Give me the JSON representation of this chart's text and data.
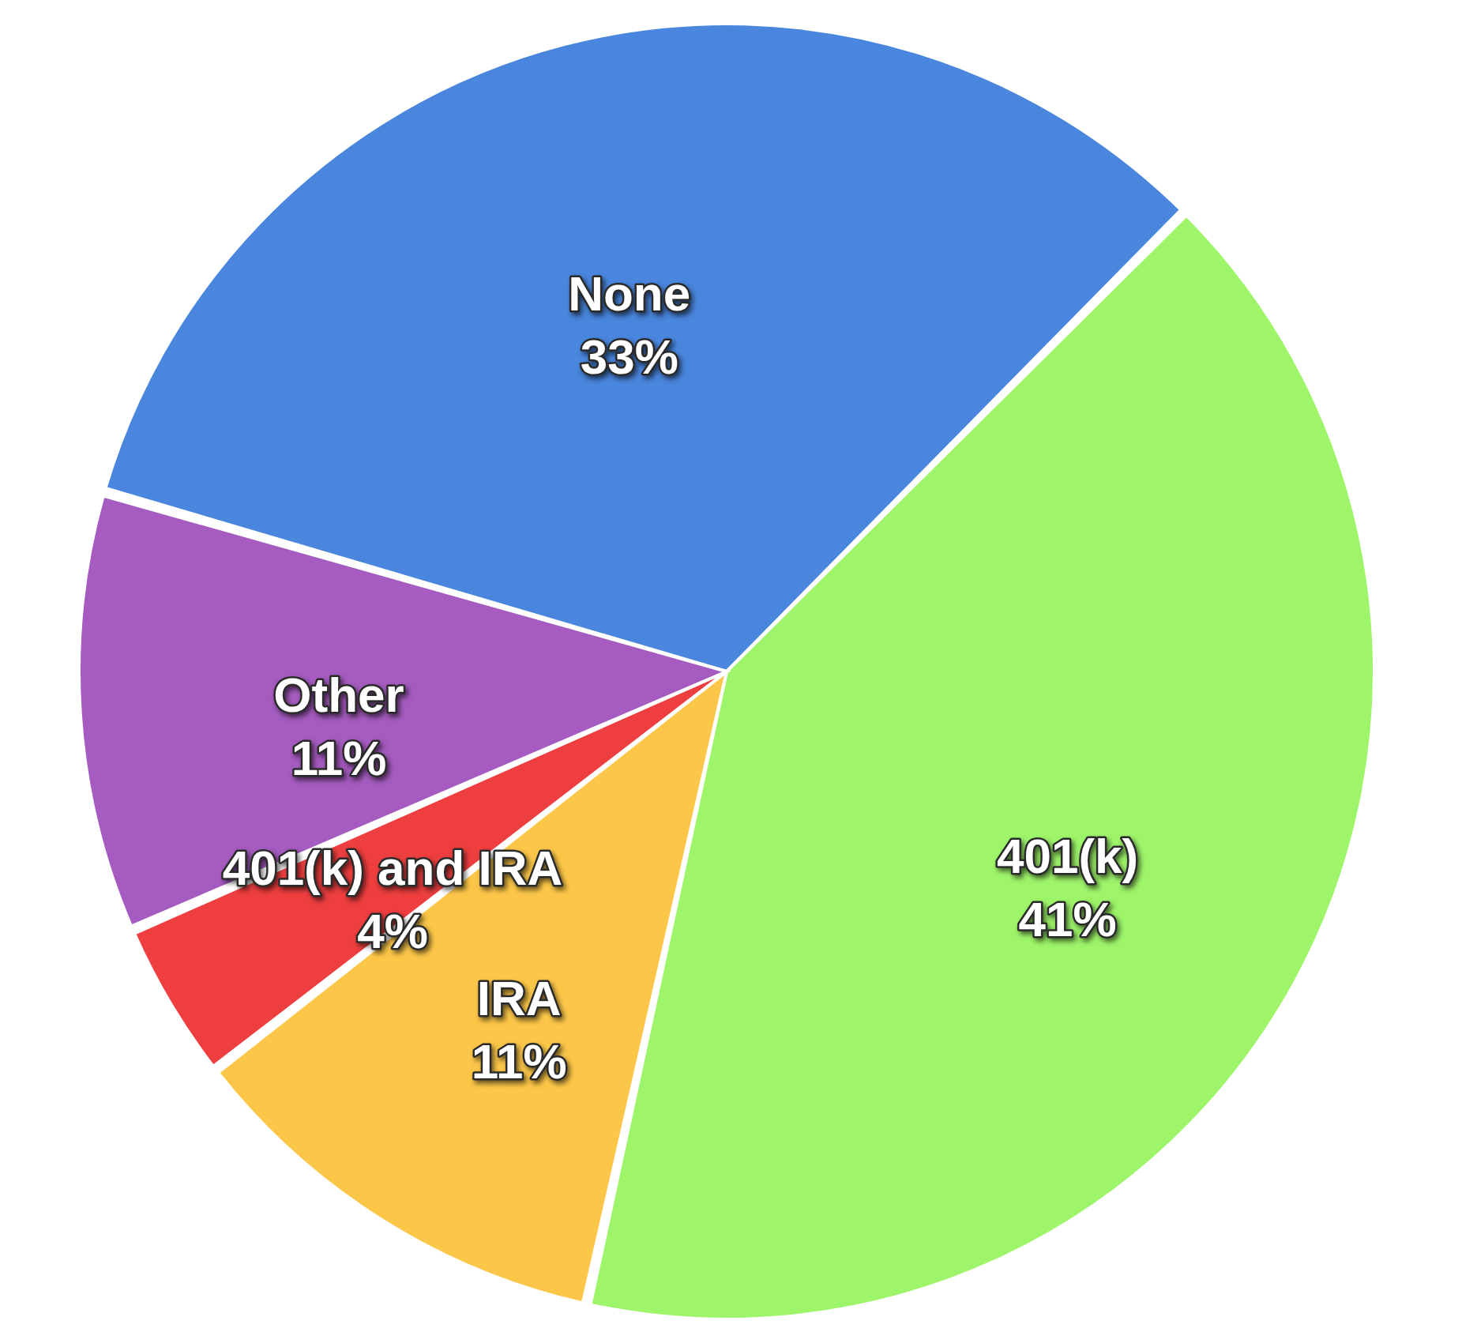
{
  "chart_data": {
    "type": "pie",
    "categories": [
      "None",
      "401(k)",
      "IRA",
      "401(k) and IRA",
      "Other"
    ],
    "values": [
      33,
      41,
      11,
      4,
      11
    ],
    "colors": [
      "#4a86de",
      "#9ef56a",
      "#fcc748",
      "#ee3e3f",
      "#a55bbf"
    ],
    "value_labels": [
      "33%",
      "41%",
      "11%",
      "4%",
      "11%"
    ]
  }
}
